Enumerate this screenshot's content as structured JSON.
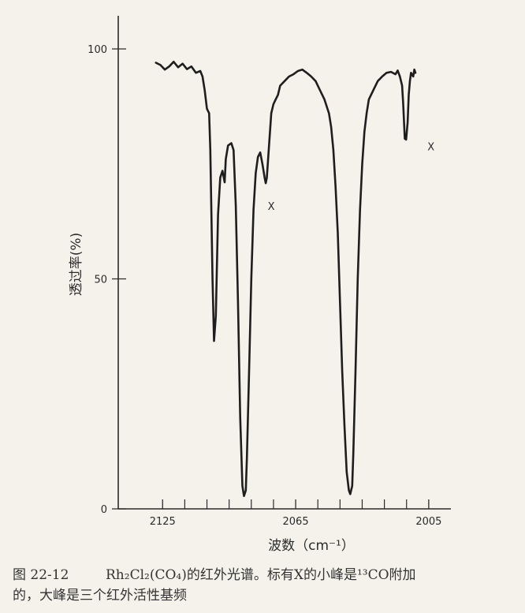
{
  "chart_data": {
    "type": "line",
    "xlabel": "波数（cm⁻¹）",
    "ylabel": "透过率(%)",
    "x_tick_labels": [
      "2125",
      "2065",
      "2005"
    ],
    "y_tick_labels": [
      "0",
      "50",
      "100"
    ],
    "xlim": [
      2145,
      1995
    ],
    "ylim": [
      0,
      100
    ],
    "x_minor_ticks": [
      2115,
      2105,
      2095,
      2085,
      2075,
      2055,
      2045,
      2035,
      2025,
      2015
    ],
    "annotations": [
      {
        "text": "X",
        "x": 2076,
        "y": 65
      },
      {
        "text": "X",
        "x": 2004,
        "y": 78
      }
    ],
    "series": [
      {
        "values": [
          [
            2128,
            97
          ],
          [
            2126,
            96.5
          ],
          [
            2124,
            95.5
          ],
          [
            2122,
            96.2
          ],
          [
            2120,
            97.2
          ],
          [
            2118,
            96
          ],
          [
            2116,
            96.8
          ],
          [
            2114,
            95.6
          ],
          [
            2112,
            96.2
          ],
          [
            2110,
            94.8
          ],
          [
            2108,
            95.2
          ],
          [
            2107,
            94
          ],
          [
            2106,
            91
          ],
          [
            2105,
            87
          ],
          [
            2104,
            86
          ],
          [
            2103.5,
            78
          ],
          [
            2102.5,
            50
          ],
          [
            2101.8,
            36.5
          ],
          [
            2101,
            42
          ],
          [
            2100,
            64
          ],
          [
            2099,
            72
          ],
          [
            2098,
            73.5
          ],
          [
            2097,
            71
          ],
          [
            2096.5,
            76
          ],
          [
            2095.5,
            79
          ],
          [
            2094,
            79.5
          ],
          [
            2093,
            78
          ],
          [
            2092,
            66
          ],
          [
            2091,
            45
          ],
          [
            2090,
            20
          ],
          [
            2089,
            5
          ],
          [
            2088.3,
            2.8
          ],
          [
            2087.5,
            4
          ],
          [
            2087,
            11
          ],
          [
            2086,
            30
          ],
          [
            2085,
            50
          ],
          [
            2084,
            65
          ],
          [
            2083,
            73
          ],
          [
            2082,
            76.5
          ],
          [
            2081,
            77.5
          ],
          [
            2080,
            75
          ],
          [
            2079,
            72
          ],
          [
            2078.5,
            70.8
          ],
          [
            2078,
            72
          ],
          [
            2077,
            79
          ],
          [
            2076,
            86
          ],
          [
            2075,
            88
          ],
          [
            2074,
            89
          ],
          [
            2073,
            90
          ],
          [
            2072,
            92
          ],
          [
            2070,
            93
          ],
          [
            2068,
            94
          ],
          [
            2066,
            94.5
          ],
          [
            2064,
            95.2
          ],
          [
            2062,
            95.5
          ],
          [
            2060,
            94.8
          ],
          [
            2058,
            94
          ],
          [
            2056,
            93
          ],
          [
            2054,
            91
          ],
          [
            2052,
            89
          ],
          [
            2050,
            86
          ],
          [
            2049,
            83
          ],
          [
            2048,
            78
          ],
          [
            2047,
            70
          ],
          [
            2046,
            60
          ],
          [
            2045,
            45
          ],
          [
            2044,
            30
          ],
          [
            2043,
            18
          ],
          [
            2042,
            8
          ],
          [
            2041,
            4
          ],
          [
            2040.4,
            3.2
          ],
          [
            2039.5,
            5
          ],
          [
            2039,
            12
          ],
          [
            2038,
            30
          ],
          [
            2037,
            50
          ],
          [
            2036,
            65
          ],
          [
            2035,
            75
          ],
          [
            2034,
            82
          ],
          [
            2033,
            86
          ],
          [
            2032,
            89
          ],
          [
            2030,
            91
          ],
          [
            2028,
            93
          ],
          [
            2026,
            94
          ],
          [
            2024,
            94.8
          ],
          [
            2022,
            95
          ],
          [
            2020,
            94.5
          ],
          [
            2019,
            95.3
          ],
          [
            2018,
            94
          ],
          [
            2017,
            92
          ],
          [
            2016.5,
            88
          ],
          [
            2015.8,
            80.5
          ],
          [
            2015.2,
            80.3
          ],
          [
            2014.5,
            84
          ],
          [
            2014,
            90
          ],
          [
            2013.5,
            93
          ],
          [
            2013,
            94.8
          ],
          [
            2012,
            94
          ],
          [
            2011.5,
            95.5
          ],
          [
            2011,
            94.8
          ]
        ]
      }
    ]
  },
  "caption": {
    "figure_number": "图 22-12",
    "line1": "Rh₂Cl₂(CO₄)的红外光谱。标有X的小峰是¹³CO附加",
    "line2": "的，大峰是三个红外活性基频"
  }
}
